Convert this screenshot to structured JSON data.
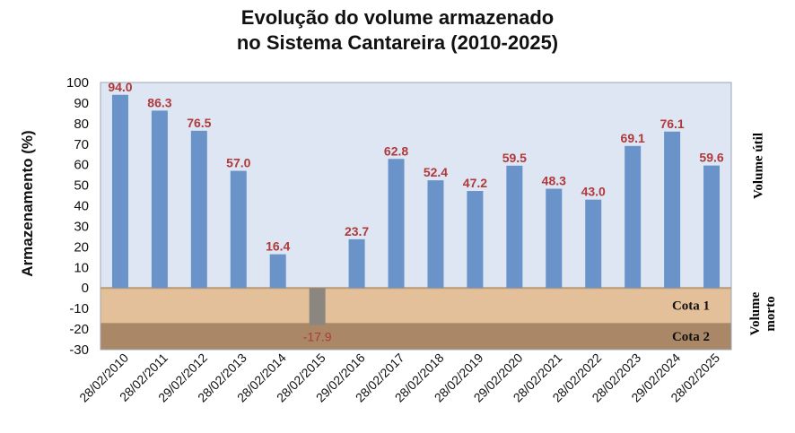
{
  "title_line1": "Evolução do volume armazenado",
  "title_line2": "no Sistema Cantareira (2010-2025)",
  "chart_data": {
    "type": "bar",
    "ylabel": "Armazenamento (%)",
    "ylim": [
      -30,
      100
    ],
    "yticks": [
      100,
      90,
      80,
      70,
      60,
      50,
      40,
      30,
      20,
      10,
      0,
      -10,
      -20,
      -30
    ],
    "categories": [
      "28/02/2010",
      "28/02/2011",
      "29/02/2012",
      "28/02/2013",
      "28/02/2014",
      "28/02/2015",
      "29/02/2016",
      "28/02/2017",
      "28/02/2018",
      "28/02/2019",
      "29/02/2020",
      "28/02/2021",
      "28/02/2022",
      "28/02/2023",
      "29/02/2024",
      "28/02/2025"
    ],
    "values": [
      94.0,
      86.3,
      76.5,
      57.0,
      16.4,
      -17.9,
      23.7,
      62.8,
      52.4,
      47.2,
      59.5,
      48.3,
      43.0,
      69.1,
      76.1,
      59.6
    ],
    "data_labels": [
      "94.0",
      "86.3",
      "76.5",
      "57.0",
      "16.4",
      "-17.9",
      "23.7",
      "62.8",
      "52.4",
      "47.2",
      "59.5",
      "48.3",
      "43.0",
      "69.1",
      "76.1",
      "59.6"
    ],
    "bands": [
      {
        "label": "Volume útil",
        "range": [
          0,
          100
        ]
      },
      {
        "label": "Cota 1",
        "range": [
          -17,
          0
        ]
      },
      {
        "label": "Cota 2",
        "range": [
          -30,
          -17
        ]
      }
    ],
    "side_labels": {
      "util": "Volume útil",
      "morto_line1": "Volume",
      "morto_line2": "morto"
    },
    "colors": {
      "bar": "#6a93c9",
      "bar_negative": "#8c8680",
      "label": "#b0393b",
      "band_util": "#dde6f2",
      "band_cota1": "#e3c09a",
      "band_cota2": "#a98767"
    }
  }
}
